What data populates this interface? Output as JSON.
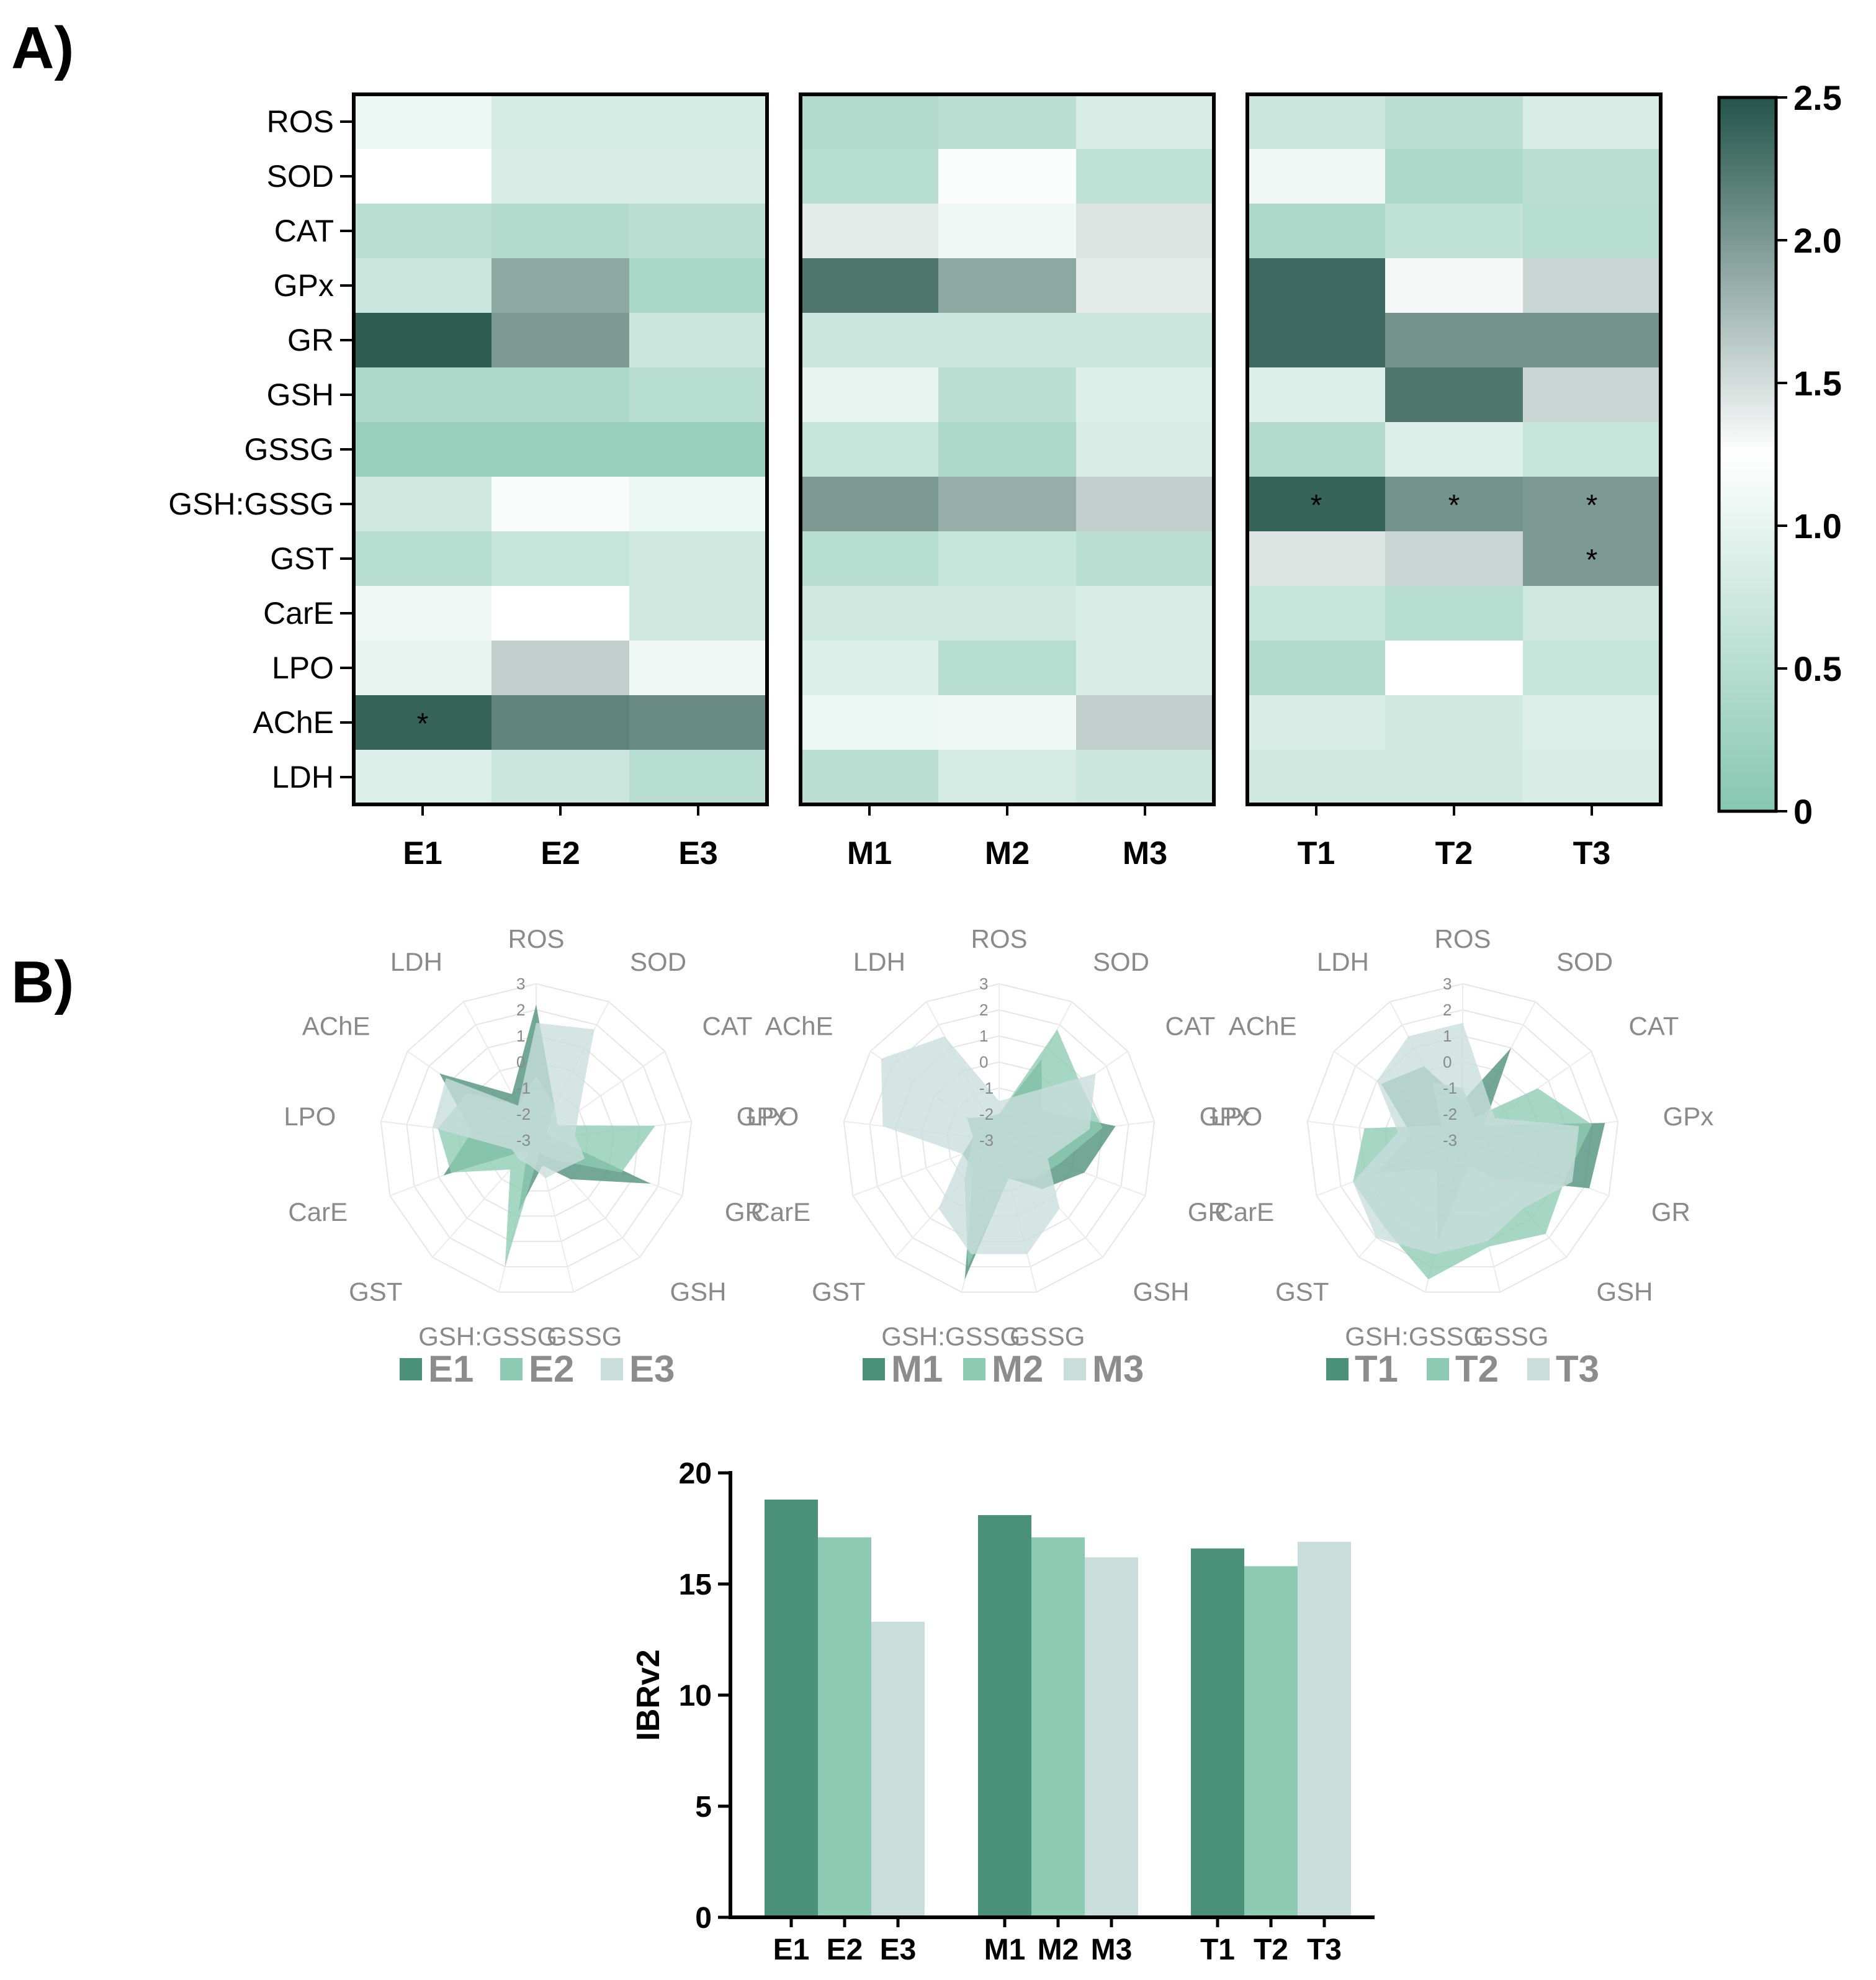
{
  "panel_labels": {
    "a": "A)",
    "b": "B)"
  },
  "chart_data": [
    {
      "type": "heatmap",
      "id": "A",
      "rows": [
        "ROS",
        "SOD",
        "CAT",
        "GPx",
        "GR",
        "GSH",
        "GSSG",
        "GSH:GSSG",
        "GST",
        "CarE",
        "LPO",
        "AChE",
        "LDH"
      ],
      "groups": [
        {
          "columns": [
            "E1",
            "E2",
            "E3"
          ],
          "values": [
            [
              1.05,
              0.82,
              0.82
            ],
            [
              1.25,
              0.85,
              0.85
            ],
            [
              0.55,
              0.45,
              0.55
            ],
            [
              0.7,
              1.9,
              0.35
            ],
            [
              2.45,
              2.0,
              0.7
            ],
            [
              0.4,
              0.4,
              0.5
            ],
            [
              0.2,
              0.2,
              0.2
            ],
            [
              0.75,
              1.18,
              1.05
            ],
            [
              0.5,
              0.65,
              0.75
            ],
            [
              1.1,
              1.25,
              0.75
            ],
            [
              1.0,
              1.6,
              1.1
            ],
            [
              2.4,
              2.15,
              2.1
            ],
            [
              0.9,
              0.7,
              0.5
            ]
          ],
          "stars": [
            [
              11,
              0
            ]
          ]
        },
        {
          "columns": [
            "M1",
            "M2",
            "M3"
          ],
          "values": [
            [
              0.45,
              0.55,
              0.85
            ],
            [
              0.5,
              1.2,
              0.6
            ],
            [
              1.4,
              1.1,
              1.45
            ],
            [
              2.25,
              1.9,
              1.4
            ],
            [
              0.7,
              0.7,
              0.7
            ],
            [
              1.0,
              0.55,
              0.9
            ],
            [
              0.65,
              0.4,
              0.85
            ],
            [
              2.0,
              1.85,
              1.6
            ],
            [
              0.5,
              0.65,
              0.55
            ],
            [
              0.75,
              0.75,
              0.85
            ],
            [
              0.9,
              0.5,
              0.85
            ],
            [
              1.05,
              1.1,
              1.6
            ],
            [
              0.55,
              0.8,
              0.7
            ]
          ],
          "stars": []
        },
        {
          "columns": [
            "T1",
            "T2",
            "T3"
          ],
          "values": [
            [
              0.7,
              0.55,
              0.85
            ],
            [
              1.1,
              0.4,
              0.55
            ],
            [
              0.4,
              0.6,
              0.5
            ],
            [
              2.35,
              1.3,
              1.55
            ],
            [
              2.35,
              2.05,
              2.05
            ],
            [
              0.9,
              2.25,
              1.55
            ],
            [
              0.45,
              0.9,
              0.65
            ],
            [
              2.4,
              2.05,
              2.0
            ],
            [
              1.45,
              1.55,
              2.0
            ],
            [
              0.65,
              0.5,
              0.75
            ],
            [
              0.45,
              1.25,
              0.65
            ],
            [
              0.85,
              0.75,
              0.9
            ],
            [
              0.75,
              0.75,
              0.85
            ]
          ],
          "stars": [
            [
              7,
              0
            ],
            [
              7,
              1
            ],
            [
              7,
              2
            ],
            [
              8,
              2
            ]
          ]
        }
      ],
      "colorbar": {
        "min": 0,
        "max": 2.5,
        "ticks": [
          "0",
          "0.5",
          "1.0",
          "1.5",
          "2.0",
          "2.5"
        ],
        "colors": [
          "#86c7b1",
          "#ffffff",
          "#24554a"
        ]
      }
    },
    {
      "type": "radar",
      "id": "B",
      "axes": [
        "ROS",
        "SOD",
        "CAT",
        "GPx",
        "GR",
        "GSH",
        "GSSG",
        "GSH:GSSG",
        "GST",
        "CarE",
        "LPO",
        "AChE",
        "LDH"
      ],
      "radial_ticks": [
        "3",
        "2",
        "1",
        "0",
        "-1",
        "-2",
        "-3"
      ],
      "range": [
        -3,
        3
      ],
      "colors": [
        "#4b9079",
        "#8dcab3",
        "#c9dedb"
      ],
      "charts": [
        {
          "series": [
            {
              "name": "E1",
              "values": [
                2.2,
                -1.5,
                -2.5,
                -2.3,
                1.7,
                -1.0,
                -2.0,
                -0.2,
                -2.5,
                0.8,
                -0.5,
                1.5,
                -1.0
              ]
            },
            {
              "name": "E2",
              "values": [
                -0.5,
                -1.5,
                -2.0,
                1.6,
                0.5,
                -2.0,
                -2.5,
                2.0,
                -1.5,
                0.5,
                0.8,
                0.2,
                -1.5
              ]
            },
            {
              "name": "E3",
              "values": [
                1.5,
                1.8,
                -1.0,
                -1.5,
                -1.0,
                -1.5,
                -1.5,
                -2.0,
                -2.0,
                -2.0,
                1.0,
                1.2,
                -1.5
              ]
            }
          ]
        },
        {
          "series": [
            {
              "name": "M1",
              "values": [
                -2.0,
                0.5,
                -1.0,
                1.5,
                0.5,
                -0.5,
                -1.5,
                2.5,
                -1.5,
                -1.5,
                -2.0,
                -1.5,
                -2.0
              ]
            },
            {
              "name": "M2",
              "values": [
                -2.0,
                1.8,
                0.8,
                1.0,
                -0.5,
                -1.0,
                -1.5,
                2.0,
                -1.0,
                -1.8,
                -2.0,
                -1.5,
                -2.0
              ]
            },
            {
              "name": "M3",
              "values": [
                -1.5,
                -1.0,
                1.5,
                0.5,
                -1.0,
                0.5,
                1.5,
                1.5,
                0.5,
                -1.5,
                1.5,
                2.5,
                1.5
              ]
            }
          ]
        },
        {
          "series": [
            {
              "name": "T1",
              "values": [
                -1.5,
                1.0,
                -2.0,
                2.5,
                2.2,
                -1.0,
                -2.0,
                1.0,
                -1.5,
                0.5,
                -1.0,
                0.8,
                0.2
              ]
            },
            {
              "name": "T2",
              "values": [
                -1.0,
                -2.0,
                0.5,
                2.0,
                1.2,
                1.8,
                1.2,
                2.5,
                1.5,
                1.5,
                0.8,
                -2.0,
                -0.5
              ]
            },
            {
              "name": "T3",
              "values": [
                1.5,
                -1.0,
                -1.5,
                1.5,
                1.5,
                0.5,
                1.0,
                1.5,
                2.0,
                1.5,
                -0.5,
                1.0,
                1.5
              ]
            }
          ]
        }
      ]
    },
    {
      "type": "bar",
      "id": "B-bar",
      "ylabel": "IBRv2",
      "ylim": [
        0,
        20
      ],
      "yticks": [
        "0",
        "5",
        "10",
        "15",
        "20"
      ],
      "groups": [
        {
          "categories": [
            "E1",
            "E2",
            "E3"
          ],
          "values": [
            18.8,
            17.1,
            13.3
          ]
        },
        {
          "categories": [
            "M1",
            "M2",
            "M3"
          ],
          "values": [
            18.1,
            17.1,
            16.2
          ]
        },
        {
          "categories": [
            "T1",
            "T2",
            "T3"
          ],
          "values": [
            16.6,
            15.8,
            16.9
          ]
        }
      ],
      "colors": [
        "#4b9079",
        "#8dcab3",
        "#c9dedb"
      ]
    }
  ]
}
